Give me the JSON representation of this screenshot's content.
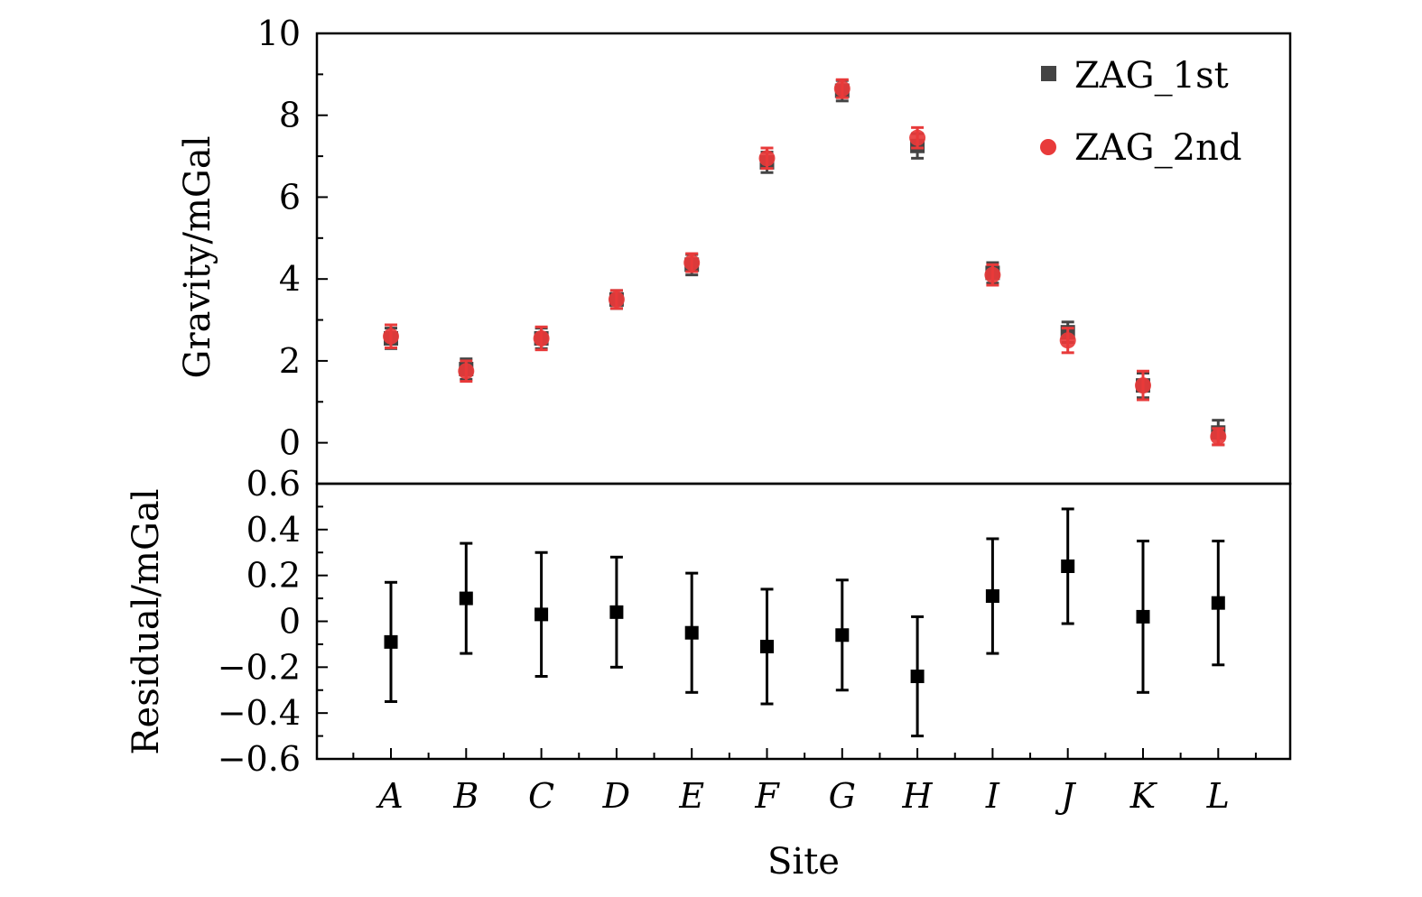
{
  "chart_data": {
    "type": "scatter",
    "categories": [
      "A",
      "B",
      "C",
      "D",
      "E",
      "F",
      "G",
      "H",
      "I",
      "J",
      "K",
      "L"
    ],
    "xlabel": "Site",
    "panels": [
      {
        "id": "gravity",
        "ylabel": "Gravity/mGal",
        "ylim": [
          -1,
          10
        ],
        "yticks": [
          0,
          2,
          4,
          6,
          8,
          10
        ],
        "ytick_labels": [
          "0",
          "2",
          "4",
          "6",
          "8",
          "10"
        ],
        "legend_position": "top-right",
        "series": [
          {
            "name": "ZAG_1st",
            "marker": "square",
            "color": "#444444",
            "values": [
              2.55,
              1.8,
              2.55,
              3.5,
              4.35,
              6.85,
              8.6,
              7.25,
              4.15,
              2.7,
              1.4,
              0.25
            ],
            "errors": [
              0.25,
              0.25,
              0.25,
              0.22,
              0.25,
              0.25,
              0.25,
              0.3,
              0.25,
              0.25,
              0.3,
              0.3
            ]
          },
          {
            "name": "ZAG_2nd",
            "marker": "circle",
            "color": "#e83a3a",
            "values": [
              2.6,
              1.75,
              2.55,
              3.5,
              4.4,
              6.95,
              8.65,
              7.45,
              4.1,
              2.5,
              1.4,
              0.15
            ],
            "errors": [
              0.28,
              0.25,
              0.28,
              0.22,
              0.22,
              0.25,
              0.22,
              0.25,
              0.25,
              0.3,
              0.35,
              0.2
            ]
          }
        ]
      },
      {
        "id": "residual",
        "ylabel": "Residual/mGal",
        "ylim": [
          -0.6,
          0.6
        ],
        "yticks": [
          -0.6,
          -0.4,
          -0.2,
          0,
          0.2,
          0.4,
          0.6
        ],
        "ytick_labels": [
          "−0.6",
          "−0.4",
          "−0.2",
          "0",
          "0.2",
          "0.4",
          "0.6"
        ],
        "series": [
          {
            "marker": "square",
            "color": "#000000",
            "values": [
              -0.09,
              0.1,
              0.03,
              0.04,
              -0.05,
              -0.11,
              -0.06,
              -0.24,
              0.11,
              0.24,
              0.02,
              0.08
            ],
            "errors": [
              0.26,
              0.24,
              0.27,
              0.24,
              0.26,
              0.25,
              0.24,
              0.26,
              0.25,
              0.25,
              0.33,
              0.27
            ]
          }
        ]
      }
    ]
  }
}
